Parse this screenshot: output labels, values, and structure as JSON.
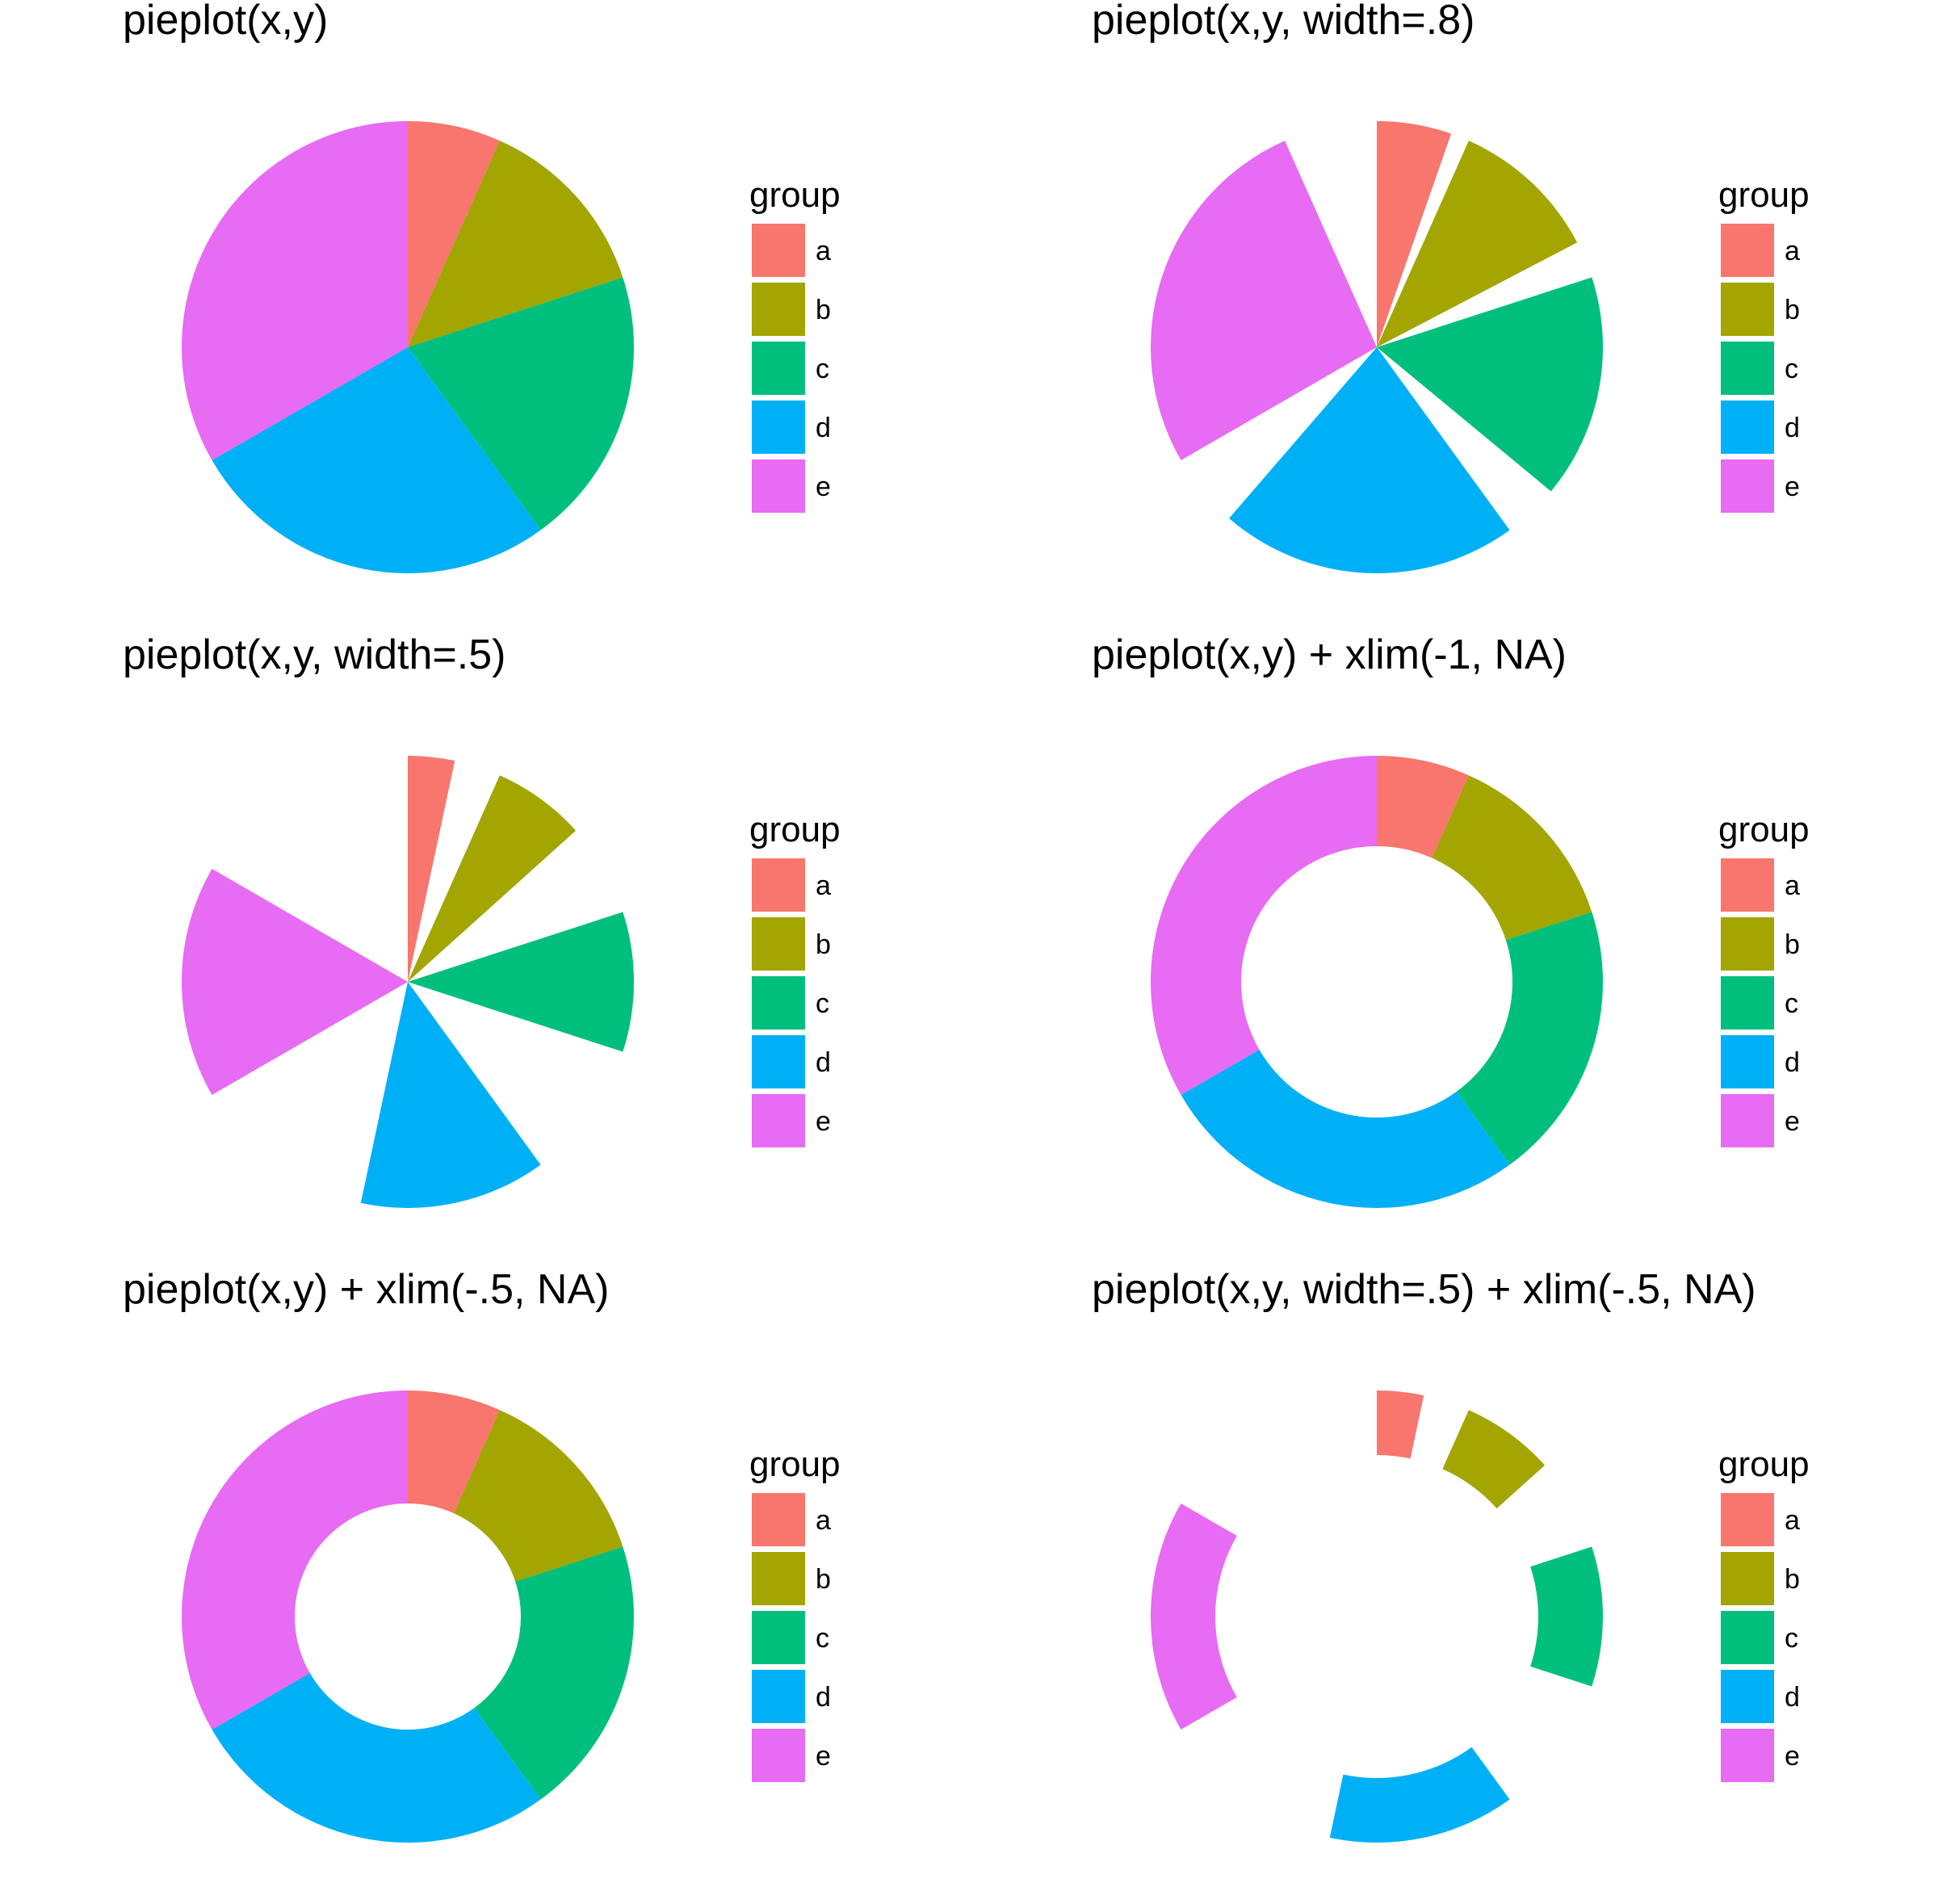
{
  "colors": {
    "a": "#F8766D",
    "b": "#A3A500",
    "c": "#00BF7D",
    "d": "#00B0F6",
    "e": "#E76BF3",
    "background": "#FFFFFF"
  },
  "chart_data": [
    {
      "type": "pie",
      "title": "pieplot(x,y)",
      "categories": [
        "a",
        "b",
        "c",
        "d",
        "e"
      ],
      "values": [
        1,
        2,
        3,
        4,
        5
      ],
      "width": 1,
      "xlim": null,
      "legend": {
        "title": "group",
        "labels": [
          "a",
          "b",
          "c",
          "d",
          "e"
        ],
        "position": "right"
      }
    },
    {
      "type": "pie",
      "title": "pieplot(x,y, width=.8)",
      "categories": [
        "a",
        "b",
        "c",
        "d",
        "e"
      ],
      "values": [
        1,
        2,
        3,
        4,
        5
      ],
      "width": 0.8,
      "xlim": null,
      "legend": {
        "title": "group",
        "labels": [
          "a",
          "b",
          "c",
          "d",
          "e"
        ],
        "position": "right"
      }
    },
    {
      "type": "pie",
      "title": "pieplot(x,y, width=.5)",
      "categories": [
        "a",
        "b",
        "c",
        "d",
        "e"
      ],
      "values": [
        1,
        2,
        3,
        4,
        5
      ],
      "width": 0.5,
      "xlim": null,
      "legend": {
        "title": "group",
        "labels": [
          "a",
          "b",
          "c",
          "d",
          "e"
        ],
        "position": "right"
      }
    },
    {
      "type": "pie",
      "title": "pieplot(x,y) + xlim(-1, NA)",
      "categories": [
        "a",
        "b",
        "c",
        "d",
        "e"
      ],
      "values": [
        1,
        2,
        3,
        4,
        5
      ],
      "width": 1,
      "xlim": [
        -1,
        null
      ],
      "legend": {
        "title": "group",
        "labels": [
          "a",
          "b",
          "c",
          "d",
          "e"
        ],
        "position": "right"
      }
    },
    {
      "type": "pie",
      "title": "pieplot(x,y) + xlim(-.5, NA)",
      "categories": [
        "a",
        "b",
        "c",
        "d",
        "e"
      ],
      "values": [
        1,
        2,
        3,
        4,
        5
      ],
      "width": 1,
      "xlim": [
        -0.5,
        null
      ],
      "legend": {
        "title": "group",
        "labels": [
          "a",
          "b",
          "c",
          "d",
          "e"
        ],
        "position": "right"
      }
    },
    {
      "type": "pie",
      "title": "pieplot(x,y, width=.5) + xlim(-.5, NA)",
      "categories": [
        "a",
        "b",
        "c",
        "d",
        "e"
      ],
      "values": [
        1,
        2,
        3,
        4,
        5
      ],
      "width": 0.5,
      "xlim": [
        -0.5,
        null
      ],
      "legend": {
        "title": "group",
        "labels": [
          "a",
          "b",
          "c",
          "d",
          "e"
        ],
        "position": "right"
      }
    }
  ]
}
